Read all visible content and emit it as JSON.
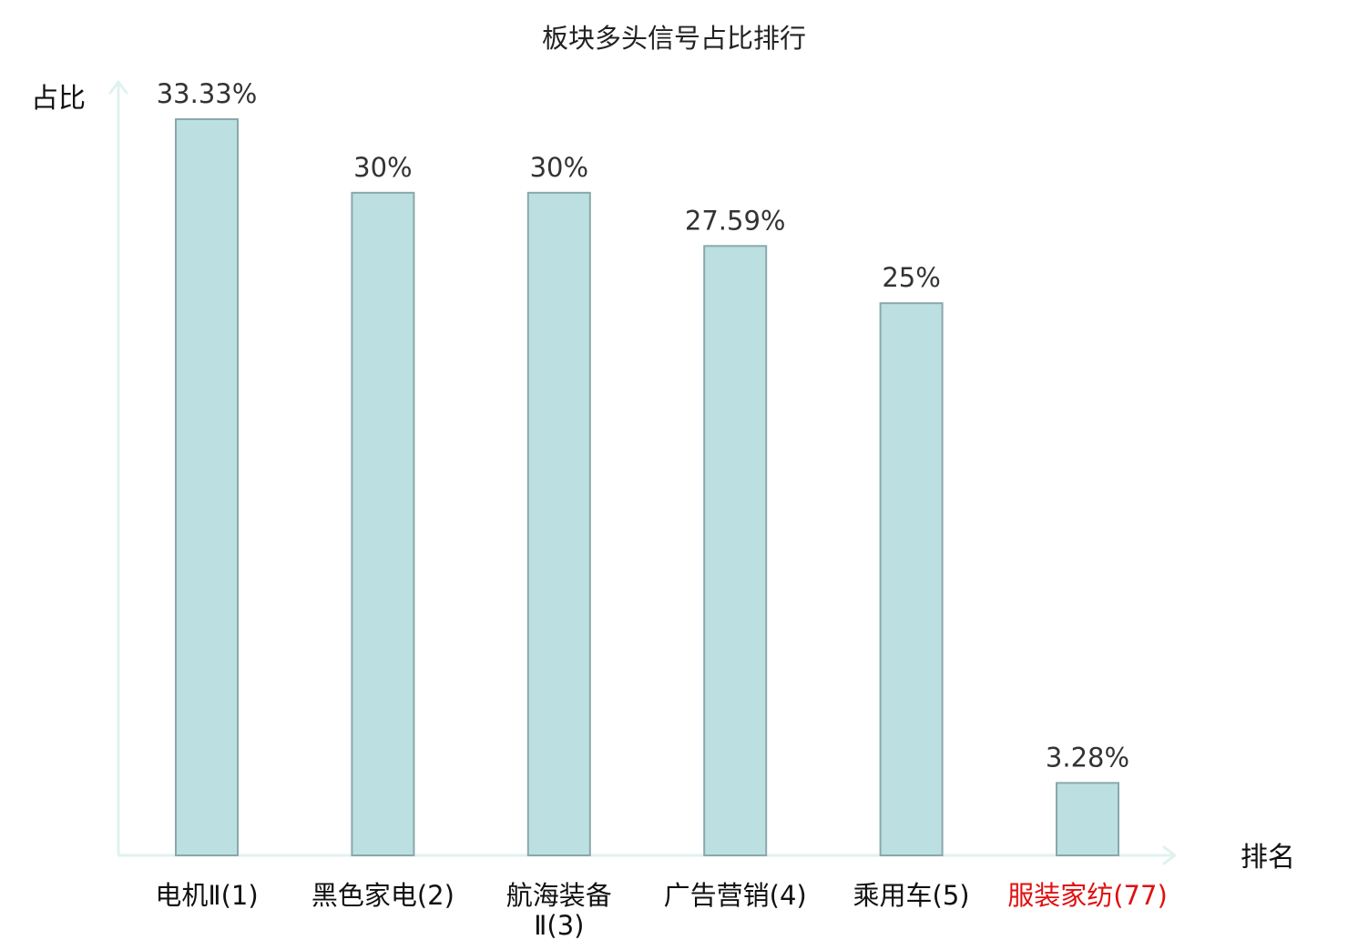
{
  "chart_data": {
    "type": "bar",
    "title": "板块多头信号占比排行",
    "ylabel": "占比",
    "xlabel": "排名",
    "categories": [
      [
        "电机Ⅱ(1)"
      ],
      [
        "黑色家电(2)"
      ],
      [
        "航海装备",
        "Ⅱ(3)"
      ],
      [
        "广告营销(4)"
      ],
      [
        "乘用车(5)"
      ],
      [
        "服装家纺(77)"
      ]
    ],
    "values": [
      33.33,
      30,
      30,
      27.59,
      25,
      3.28
    ],
    "value_labels": [
      "33.33%",
      "30%",
      "30%",
      "27.59%",
      "25%",
      "3.28%"
    ],
    "highlight_index": 5,
    "ylim": [
      0,
      35
    ],
    "grid": false,
    "colors": {
      "bar_fill": "#bce0e2",
      "bar_stroke": "#8aa8ab",
      "axis": "#e0f2ef",
      "text": "#333333",
      "title": "#222222",
      "highlight": "#e01010"
    }
  }
}
